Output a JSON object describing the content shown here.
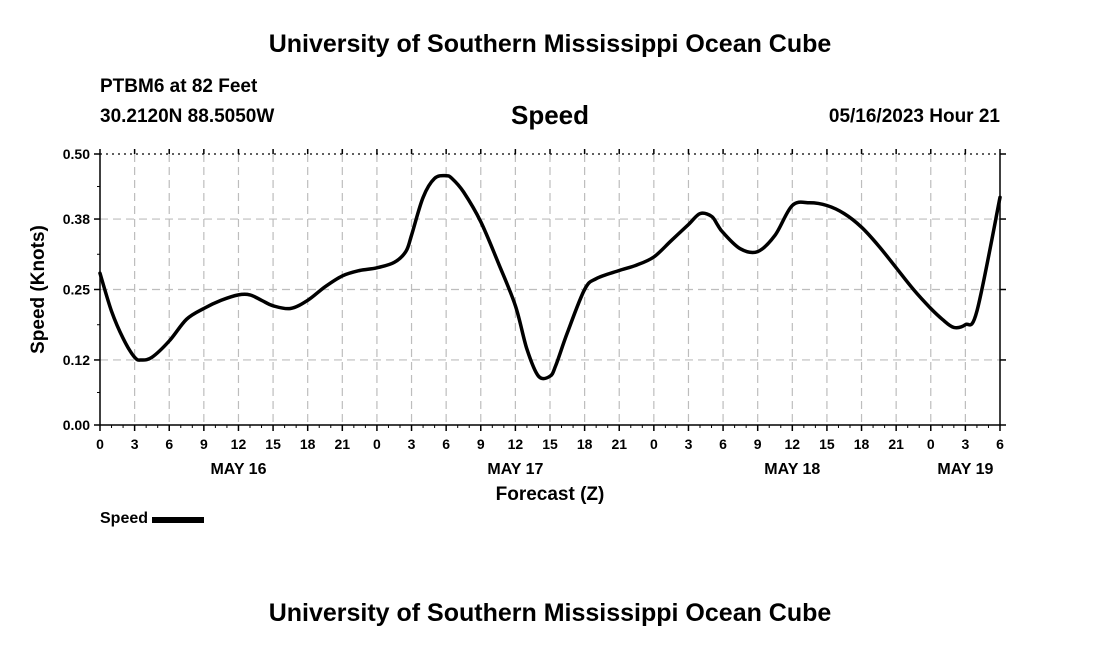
{
  "header": {
    "title": "University of Southern Mississippi Ocean Cube",
    "station": "PTBM6 at 82 Feet",
    "coords": "30.2120N  88.5050W",
    "chart_title": "Speed",
    "datetime": "05/16/2023 Hour 21"
  },
  "footer": {
    "title": "University of Southern Mississippi Ocean Cube"
  },
  "legend": {
    "label": "Speed",
    "color": "#000000"
  },
  "chart_data": {
    "type": "line",
    "title": "Speed",
    "xlabel": "Forecast (Z)",
    "ylabel": "Speed (Knots)",
    "xlim": [
      0,
      78
    ],
    "ylim": [
      0,
      0.5
    ],
    "yticks": [
      0,
      0.12,
      0.25,
      0.38,
      0.5
    ],
    "ytick_labels": [
      "0.00",
      "0.12",
      "0.25",
      "0.38",
      "0.50"
    ],
    "xticks": [
      0,
      3,
      6,
      9,
      12,
      15,
      18,
      21,
      24,
      27,
      30,
      33,
      36,
      39,
      42,
      45,
      48,
      51,
      54,
      57,
      60,
      63,
      66,
      69,
      72,
      75,
      78
    ],
    "xtick_labels": [
      "0",
      "3",
      "6",
      "9",
      "12",
      "15",
      "18",
      "21",
      "0",
      "3",
      "6",
      "9",
      "12",
      "15",
      "18",
      "21",
      "0",
      "3",
      "6",
      "9",
      "12",
      "15",
      "18",
      "21",
      "0",
      "3",
      "6"
    ],
    "date_labels": [
      {
        "label": "MAY 16",
        "x": 12
      },
      {
        "label": "MAY 17",
        "x": 36
      },
      {
        "label": "MAY 18",
        "x": 60
      },
      {
        "label": "MAY 19",
        "x": 75
      }
    ],
    "grid": true,
    "legend_position": "bottom-left",
    "series": [
      {
        "name": "Speed",
        "color": "#000000",
        "x": [
          0,
          1,
          2,
          3,
          3.6,
          4.5,
          6,
          7.5,
          9,
          10.5,
          12,
          13,
          14,
          15,
          16.5,
          18,
          19.5,
          21,
          22.5,
          24,
          25.5,
          26.5,
          27,
          28,
          29,
          30,
          30.5,
          31.5,
          33,
          34.5,
          36,
          37,
          38,
          39,
          39.5,
          40.5,
          42,
          43,
          45,
          46.5,
          48,
          49.5,
          51,
          52,
          53,
          53.5,
          54,
          55.5,
          57,
          58.5,
          60,
          61.5,
          63,
          64.5,
          66,
          67.5,
          69,
          70.5,
          72,
          73,
          74,
          75,
          76,
          78
        ],
        "y": [
          0.28,
          0.21,
          0.16,
          0.125,
          0.12,
          0.125,
          0.155,
          0.195,
          0.215,
          0.23,
          0.24,
          0.24,
          0.23,
          0.22,
          0.215,
          0.23,
          0.255,
          0.275,
          0.285,
          0.29,
          0.3,
          0.32,
          0.35,
          0.42,
          0.455,
          0.46,
          0.455,
          0.43,
          0.375,
          0.3,
          0.22,
          0.14,
          0.09,
          0.09,
          0.11,
          0.17,
          0.25,
          0.27,
          0.285,
          0.295,
          0.31,
          0.34,
          0.37,
          0.39,
          0.385,
          0.37,
          0.355,
          0.325,
          0.32,
          0.35,
          0.405,
          0.41,
          0.405,
          0.39,
          0.365,
          0.33,
          0.29,
          0.25,
          0.215,
          0.195,
          0.18,
          0.185,
          0.21,
          0.42
        ]
      }
    ]
  }
}
